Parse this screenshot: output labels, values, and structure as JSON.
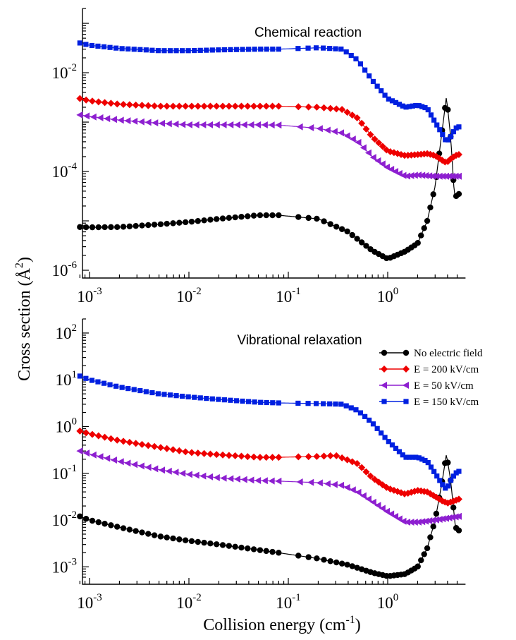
{
  "figure": {
    "y_axis_title": "Cross section (Å",
    "y_axis_title_sup": "2",
    "y_axis_title_end": ")",
    "x_axis_title": "Collision energy (cm",
    "x_axis_title_sup": "-1",
    "x_axis_title_end": ")"
  },
  "chart_data": [
    {
      "type": "line",
      "title": "Chemical reaction",
      "xscale": "log",
      "yscale": "log",
      "xlim": [
        0.0008,
        5.5
      ],
      "ylim": [
        1e-06,
        0.2
      ],
      "x_ticks": [
        {
          "base": "10",
          "exp": "-3"
        },
        {
          "base": "10",
          "exp": "-2"
        },
        {
          "base": "10",
          "exp": "-1"
        },
        {
          "base": "10",
          "exp": "0"
        }
      ],
      "y_ticks": [
        {
          "base": "10",
          "exp": "-6"
        },
        {
          "base": "10",
          "exp": "-4"
        },
        {
          "base": "10",
          "exp": "-2"
        }
      ],
      "series": [
        {
          "name": "No electric field",
          "color": "#000000",
          "marker": "circle",
          "points": [
            [
              0.0008,
              7.5e-06
            ],
            [
              0.001,
              7.4e-06
            ],
            [
              0.002,
              7.5e-06
            ],
            [
              0.005,
              8.5e-06
            ],
            [
              0.01,
              9.5e-06
            ],
            [
              0.02,
              1.1e-05
            ],
            [
              0.05,
              1.3e-05
            ],
            [
              0.08,
              1.3e-05
            ],
            [
              0.2,
              1.1e-05
            ],
            [
              0.4,
              6e-06
            ],
            [
              0.7,
              2.5e-06
            ],
            [
              1.0,
              1.7e-06
            ],
            [
              1.5,
              2.4e-06
            ],
            [
              2.0,
              3.5e-06
            ],
            [
              2.5,
              1e-05
            ],
            [
              3.0,
              5e-05
            ],
            [
              3.5,
              0.0006
            ],
            [
              3.9,
              0.0033
            ],
            [
              4.3,
              0.0005
            ],
            [
              4.7,
              3e-05
            ],
            [
              5.2,
              3.5e-05
            ]
          ]
        },
        {
          "name": "E = 200 kV/cm",
          "color": "#ee0000",
          "marker": "diamond",
          "points": [
            [
              0.0008,
              0.003
            ],
            [
              0.001,
              0.0027
            ],
            [
              0.002,
              0.0023
            ],
            [
              0.005,
              0.0021
            ],
            [
              0.01,
              0.0021
            ],
            [
              0.05,
              0.0021
            ],
            [
              0.08,
              0.0021
            ],
            [
              0.2,
              0.002
            ],
            [
              0.35,
              0.0018
            ],
            [
              0.5,
              0.0012
            ],
            [
              0.7,
              0.0005
            ],
            [
              1.0,
              0.00026
            ],
            [
              1.5,
              0.00021
            ],
            [
              2.0,
              0.00022
            ],
            [
              2.5,
              0.00023
            ],
            [
              3.0,
              0.00021
            ],
            [
              3.5,
              0.00017
            ],
            [
              3.9,
              0.00015
            ],
            [
              4.3,
              0.00018
            ],
            [
              4.8,
              0.00021
            ],
            [
              5.2,
              0.00022
            ]
          ]
        },
        {
          "name": "E = 50 kV/cm",
          "color": "#8d1fd0",
          "marker": "triangle-left",
          "points": [
            [
              0.0008,
              0.0014
            ],
            [
              0.001,
              0.0013
            ],
            [
              0.002,
              0.0011
            ],
            [
              0.005,
              0.00095
            ],
            [
              0.01,
              0.00088
            ],
            [
              0.05,
              0.00088
            ],
            [
              0.08,
              0.00087
            ],
            [
              0.2,
              0.00075
            ],
            [
              0.35,
              0.0006
            ],
            [
              0.5,
              0.0004
            ],
            [
              0.7,
              0.0002
            ],
            [
              1.0,
              0.00012
            ],
            [
              1.5,
              8e-05
            ],
            [
              2.0,
              8.5e-05
            ],
            [
              3.0,
              8e-05
            ],
            [
              4.0,
              8e-05
            ],
            [
              5.2,
              8e-05
            ]
          ]
        },
        {
          "name": "E = 150 kV/cm",
          "color": "#0020e0",
          "marker": "square",
          "points": [
            [
              0.0008,
              0.04
            ],
            [
              0.001,
              0.036
            ],
            [
              0.002,
              0.031
            ],
            [
              0.005,
              0.028
            ],
            [
              0.01,
              0.028
            ],
            [
              0.02,
              0.029
            ],
            [
              0.05,
              0.03
            ],
            [
              0.08,
              0.03
            ],
            [
              0.2,
              0.032
            ],
            [
              0.35,
              0.03
            ],
            [
              0.5,
              0.018
            ],
            [
              0.7,
              0.007
            ],
            [
              1.0,
              0.003
            ],
            [
              1.5,
              0.002
            ],
            [
              2.0,
              0.0022
            ],
            [
              2.5,
              0.0019
            ],
            [
              3.0,
              0.001
            ],
            [
              3.5,
              0.0006
            ],
            [
              3.9,
              0.0004
            ],
            [
              4.3,
              0.0005
            ],
            [
              4.8,
              0.00075
            ],
            [
              5.2,
              0.0008
            ]
          ]
        }
      ]
    },
    {
      "type": "line",
      "title": "Vibrational relaxation",
      "xscale": "log",
      "yscale": "log",
      "xlim": [
        0.0008,
        5.5
      ],
      "ylim": [
        0.0006,
        200.0
      ],
      "x_ticks": [
        {
          "base": "10",
          "exp": "-3"
        },
        {
          "base": "10",
          "exp": "-2"
        },
        {
          "base": "10",
          "exp": "-1"
        },
        {
          "base": "10",
          "exp": "0"
        }
      ],
      "y_ticks": [
        {
          "base": "10",
          "exp": "-3"
        },
        {
          "base": "10",
          "exp": "-2"
        },
        {
          "base": "10",
          "exp": "-1"
        },
        {
          "base": "10",
          "exp": "0"
        },
        {
          "base": "10",
          "exp": "1"
        },
        {
          "base": "10",
          "exp": "2"
        }
      ],
      "legend": {
        "position": "top-right"
      },
      "series": [
        {
          "name": "No electric field",
          "color": "#000000",
          "marker": "circle",
          "points": [
            [
              0.0008,
              0.012
            ],
            [
              0.001,
              0.01
            ],
            [
              0.002,
              0.007
            ],
            [
              0.005,
              0.0045
            ],
            [
              0.01,
              0.0036
            ],
            [
              0.02,
              0.003
            ],
            [
              0.05,
              0.0023
            ],
            [
              0.08,
              0.002
            ],
            [
              0.2,
              0.0015
            ],
            [
              0.4,
              0.0011
            ],
            [
              0.7,
              0.00075
            ],
            [
              1.0,
              0.00063
            ],
            [
              1.5,
              0.0007
            ],
            [
              2.0,
              0.001
            ],
            [
              2.5,
              0.0025
            ],
            [
              3.0,
              0.01
            ],
            [
              3.5,
              0.06
            ],
            [
              3.9,
              0.26
            ],
            [
              4.3,
              0.07
            ],
            [
              4.8,
              0.007
            ],
            [
              5.2,
              0.006
            ]
          ]
        },
        {
          "name": "E = 200 kV/cm",
          "color": "#ee0000",
          "marker": "diamond",
          "points": [
            [
              0.0008,
              0.8
            ],
            [
              0.001,
              0.7
            ],
            [
              0.002,
              0.5
            ],
            [
              0.005,
              0.36
            ],
            [
              0.01,
              0.28
            ],
            [
              0.02,
              0.25
            ],
            [
              0.05,
              0.22
            ],
            [
              0.08,
              0.22
            ],
            [
              0.2,
              0.23
            ],
            [
              0.3,
              0.24
            ],
            [
              0.5,
              0.16
            ],
            [
              0.7,
              0.08
            ],
            [
              1.0,
              0.048
            ],
            [
              1.5,
              0.036
            ],
            [
              2.0,
              0.043
            ],
            [
              2.5,
              0.04
            ],
            [
              3.0,
              0.032
            ],
            [
              3.5,
              0.026
            ],
            [
              4.0,
              0.023
            ],
            [
              4.5,
              0.025
            ],
            [
              5.2,
              0.028
            ]
          ]
        },
        {
          "name": "E = 50 kV/cm",
          "color": "#8d1fd0",
          "marker": "triangle-left",
          "points": [
            [
              0.0008,
              0.3
            ],
            [
              0.001,
              0.26
            ],
            [
              0.002,
              0.18
            ],
            [
              0.005,
              0.12
            ],
            [
              0.01,
              0.095
            ],
            [
              0.02,
              0.08
            ],
            [
              0.05,
              0.07
            ],
            [
              0.08,
              0.068
            ],
            [
              0.2,
              0.063
            ],
            [
              0.35,
              0.055
            ],
            [
              0.5,
              0.04
            ],
            [
              0.7,
              0.025
            ],
            [
              1.0,
              0.015
            ],
            [
              1.5,
              0.009
            ],
            [
              2.0,
              0.009
            ],
            [
              3.0,
              0.01
            ],
            [
              4.0,
              0.011
            ],
            [
              5.2,
              0.012
            ]
          ]
        },
        {
          "name": "E = 150 kV/cm",
          "color": "#0020e0",
          "marker": "square",
          "points": [
            [
              0.0008,
              12.0
            ],
            [
              0.001,
              10.0
            ],
            [
              0.002,
              7.0
            ],
            [
              0.005,
              5.0
            ],
            [
              0.01,
              4.3
            ],
            [
              0.02,
              3.8
            ],
            [
              0.05,
              3.3
            ],
            [
              0.08,
              3.2
            ],
            [
              0.2,
              3.1
            ],
            [
              0.35,
              3.0
            ],
            [
              0.5,
              2.2
            ],
            [
              0.7,
              1.2
            ],
            [
              1.0,
              0.5
            ],
            [
              1.5,
              0.22
            ],
            [
              2.0,
              0.22
            ],
            [
              2.5,
              0.18
            ],
            [
              3.0,
              0.1
            ],
            [
              3.5,
              0.06
            ],
            [
              3.9,
              0.045
            ],
            [
              4.3,
              0.07
            ],
            [
              4.8,
              0.1
            ],
            [
              5.2,
              0.11
            ]
          ]
        }
      ]
    }
  ]
}
